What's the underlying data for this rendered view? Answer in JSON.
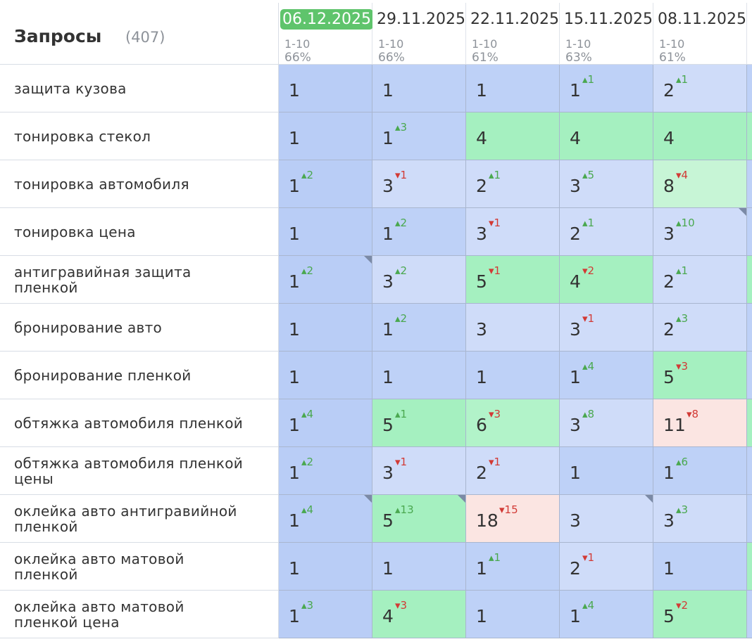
{
  "header": {
    "title": "Запросы",
    "count": "(407)",
    "current_date_index": 0,
    "dates": [
      {
        "date": "06.12.2025",
        "range": "1-10",
        "pct": "66%"
      },
      {
        "date": "29.11.2025",
        "range": "1-10",
        "pct": "66%"
      },
      {
        "date": "22.11.2025",
        "range": "1-10",
        "pct": "61%"
      },
      {
        "date": "15.11.2025",
        "range": "1-10",
        "pct": "63%"
      },
      {
        "date": "08.11.2025",
        "range": "1-10",
        "pct": "61%"
      }
    ]
  },
  "colors": {
    "current_date": "#5fc46c",
    "delta_up": "#4aa84f",
    "delta_down": "#d23a35",
    "top_blue": "#b9cdf6",
    "light_blue": "#cfdcf9",
    "green": "#a5f0c0",
    "light_green": "#c7f5d6",
    "pink": "#fbe5e2"
  },
  "rows": [
    {
      "query": "защита кузова",
      "cells": [
        {
          "pos": "1",
          "delta": "",
          "dir": "",
          "bg": "c0",
          "flag": false
        },
        {
          "pos": "1",
          "delta": "",
          "dir": "",
          "bg": "c1",
          "flag": false
        },
        {
          "pos": "1",
          "delta": "",
          "dir": "",
          "bg": "c1",
          "flag": false
        },
        {
          "pos": "1",
          "delta": "1",
          "dir": "up",
          "bg": "c1",
          "flag": false
        },
        {
          "pos": "2",
          "delta": "1",
          "dir": "up",
          "bg": "c2",
          "flag": false
        }
      ]
    },
    {
      "query": "тонировка стекол",
      "cells": [
        {
          "pos": "1",
          "delta": "",
          "dir": "",
          "bg": "c0",
          "flag": false
        },
        {
          "pos": "1",
          "delta": "3",
          "dir": "up",
          "bg": "c1",
          "flag": false
        },
        {
          "pos": "4",
          "delta": "",
          "dir": "",
          "bg": "cG",
          "flag": false
        },
        {
          "pos": "4",
          "delta": "",
          "dir": "",
          "bg": "cG",
          "flag": false
        },
        {
          "pos": "4",
          "delta": "",
          "dir": "",
          "bg": "cG",
          "flag": false
        }
      ]
    },
    {
      "query": "тонировка автомобиля",
      "cells": [
        {
          "pos": "1",
          "delta": "2",
          "dir": "up",
          "bg": "c0",
          "flag": false
        },
        {
          "pos": "3",
          "delta": "1",
          "dir": "down",
          "bg": "c2",
          "flag": false
        },
        {
          "pos": "2",
          "delta": "1",
          "dir": "up",
          "bg": "c2",
          "flag": false
        },
        {
          "pos": "3",
          "delta": "5",
          "dir": "up",
          "bg": "c2",
          "flag": false
        },
        {
          "pos": "8",
          "delta": "4",
          "dir": "down",
          "bg": "cL",
          "flag": false
        }
      ]
    },
    {
      "query": "тонировка цена",
      "cells": [
        {
          "pos": "1",
          "delta": "",
          "dir": "",
          "bg": "c0",
          "flag": false
        },
        {
          "pos": "1",
          "delta": "2",
          "dir": "up",
          "bg": "c1",
          "flag": false
        },
        {
          "pos": "3",
          "delta": "1",
          "dir": "down",
          "bg": "c2",
          "flag": false
        },
        {
          "pos": "2",
          "delta": "1",
          "dir": "up",
          "bg": "c2",
          "flag": false
        },
        {
          "pos": "3",
          "delta": "10",
          "dir": "up",
          "bg": "c2",
          "flag": true
        }
      ]
    },
    {
      "query": "антигравийная защита пленкой",
      "cells": [
        {
          "pos": "1",
          "delta": "2",
          "dir": "up",
          "bg": "c0",
          "flag": true
        },
        {
          "pos": "3",
          "delta": "2",
          "dir": "up",
          "bg": "c2",
          "flag": false
        },
        {
          "pos": "5",
          "delta": "1",
          "dir": "down",
          "bg": "cG",
          "flag": false
        },
        {
          "pos": "4",
          "delta": "2",
          "dir": "down",
          "bg": "cG",
          "flag": false
        },
        {
          "pos": "2",
          "delta": "1",
          "dir": "up",
          "bg": "c2",
          "flag": false
        }
      ]
    },
    {
      "query": "бронирование авто",
      "cells": [
        {
          "pos": "1",
          "delta": "",
          "dir": "",
          "bg": "c0",
          "flag": false
        },
        {
          "pos": "1",
          "delta": "2",
          "dir": "up",
          "bg": "c1",
          "flag": false
        },
        {
          "pos": "3",
          "delta": "",
          "dir": "",
          "bg": "c2",
          "flag": false
        },
        {
          "pos": "3",
          "delta": "1",
          "dir": "down",
          "bg": "c2",
          "flag": false
        },
        {
          "pos": "2",
          "delta": "3",
          "dir": "up",
          "bg": "c2",
          "flag": false
        }
      ]
    },
    {
      "query": "бронирование пленкой",
      "cells": [
        {
          "pos": "1",
          "delta": "",
          "dir": "",
          "bg": "c0",
          "flag": false
        },
        {
          "pos": "1",
          "delta": "",
          "dir": "",
          "bg": "c1",
          "flag": false
        },
        {
          "pos": "1",
          "delta": "",
          "dir": "",
          "bg": "c1",
          "flag": false
        },
        {
          "pos": "1",
          "delta": "4",
          "dir": "up",
          "bg": "c1",
          "flag": false
        },
        {
          "pos": "5",
          "delta": "3",
          "dir": "down",
          "bg": "cG",
          "flag": false
        }
      ]
    },
    {
      "query": "обтяжка автомобиля пленкой",
      "cells": [
        {
          "pos": "1",
          "delta": "4",
          "dir": "up",
          "bg": "c0",
          "flag": false
        },
        {
          "pos": "5",
          "delta": "1",
          "dir": "up",
          "bg": "cG",
          "flag": false
        },
        {
          "pos": "6",
          "delta": "3",
          "dir": "down",
          "bg": "cG2",
          "flag": false
        },
        {
          "pos": "3",
          "delta": "8",
          "dir": "up",
          "bg": "c2",
          "flag": false
        },
        {
          "pos": "11",
          "delta": "8",
          "dir": "down",
          "bg": "cR",
          "flag": false
        }
      ]
    },
    {
      "query": "обтяжка автомобиля пленкой цены",
      "cells": [
        {
          "pos": "1",
          "delta": "2",
          "dir": "up",
          "bg": "c0",
          "flag": false
        },
        {
          "pos": "3",
          "delta": "1",
          "dir": "down",
          "bg": "c2",
          "flag": false
        },
        {
          "pos": "2",
          "delta": "1",
          "dir": "down",
          "bg": "c2",
          "flag": false
        },
        {
          "pos": "1",
          "delta": "",
          "dir": "",
          "bg": "c1",
          "flag": false
        },
        {
          "pos": "1",
          "delta": "6",
          "dir": "up",
          "bg": "c1",
          "flag": false
        }
      ]
    },
    {
      "query": "оклейка авто антигравийной пленкой",
      "cells": [
        {
          "pos": "1",
          "delta": "4",
          "dir": "up",
          "bg": "c0",
          "flag": true
        },
        {
          "pos": "5",
          "delta": "13",
          "dir": "up",
          "bg": "cG",
          "flag": true
        },
        {
          "pos": "18",
          "delta": "15",
          "dir": "down",
          "bg": "cR",
          "flag": false
        },
        {
          "pos": "3",
          "delta": "",
          "dir": "",
          "bg": "c2",
          "flag": true
        },
        {
          "pos": "3",
          "delta": "3",
          "dir": "up",
          "bg": "c2",
          "flag": false
        }
      ]
    },
    {
      "query": "оклейка авто матовой пленкой",
      "cells": [
        {
          "pos": "1",
          "delta": "",
          "dir": "",
          "bg": "c0",
          "flag": false
        },
        {
          "pos": "1",
          "delta": "",
          "dir": "",
          "bg": "c1",
          "flag": false
        },
        {
          "pos": "1",
          "delta": "1",
          "dir": "up",
          "bg": "c1",
          "flag": false
        },
        {
          "pos": "2",
          "delta": "1",
          "dir": "down",
          "bg": "c2",
          "flag": false
        },
        {
          "pos": "1",
          "delta": "",
          "dir": "",
          "bg": "c1",
          "flag": false
        }
      ]
    },
    {
      "query": "оклейка авто матовой пленкой цена",
      "cells": [
        {
          "pos": "1",
          "delta": "3",
          "dir": "up",
          "bg": "c0",
          "flag": false
        },
        {
          "pos": "4",
          "delta": "3",
          "dir": "down",
          "bg": "cG",
          "flag": false
        },
        {
          "pos": "1",
          "delta": "",
          "dir": "",
          "bg": "c1",
          "flag": false
        },
        {
          "pos": "1",
          "delta": "4",
          "dir": "up",
          "bg": "c1",
          "flag": false
        },
        {
          "pos": "5",
          "delta": "2",
          "dir": "down",
          "bg": "cG",
          "flag": false
        }
      ]
    }
  ]
}
